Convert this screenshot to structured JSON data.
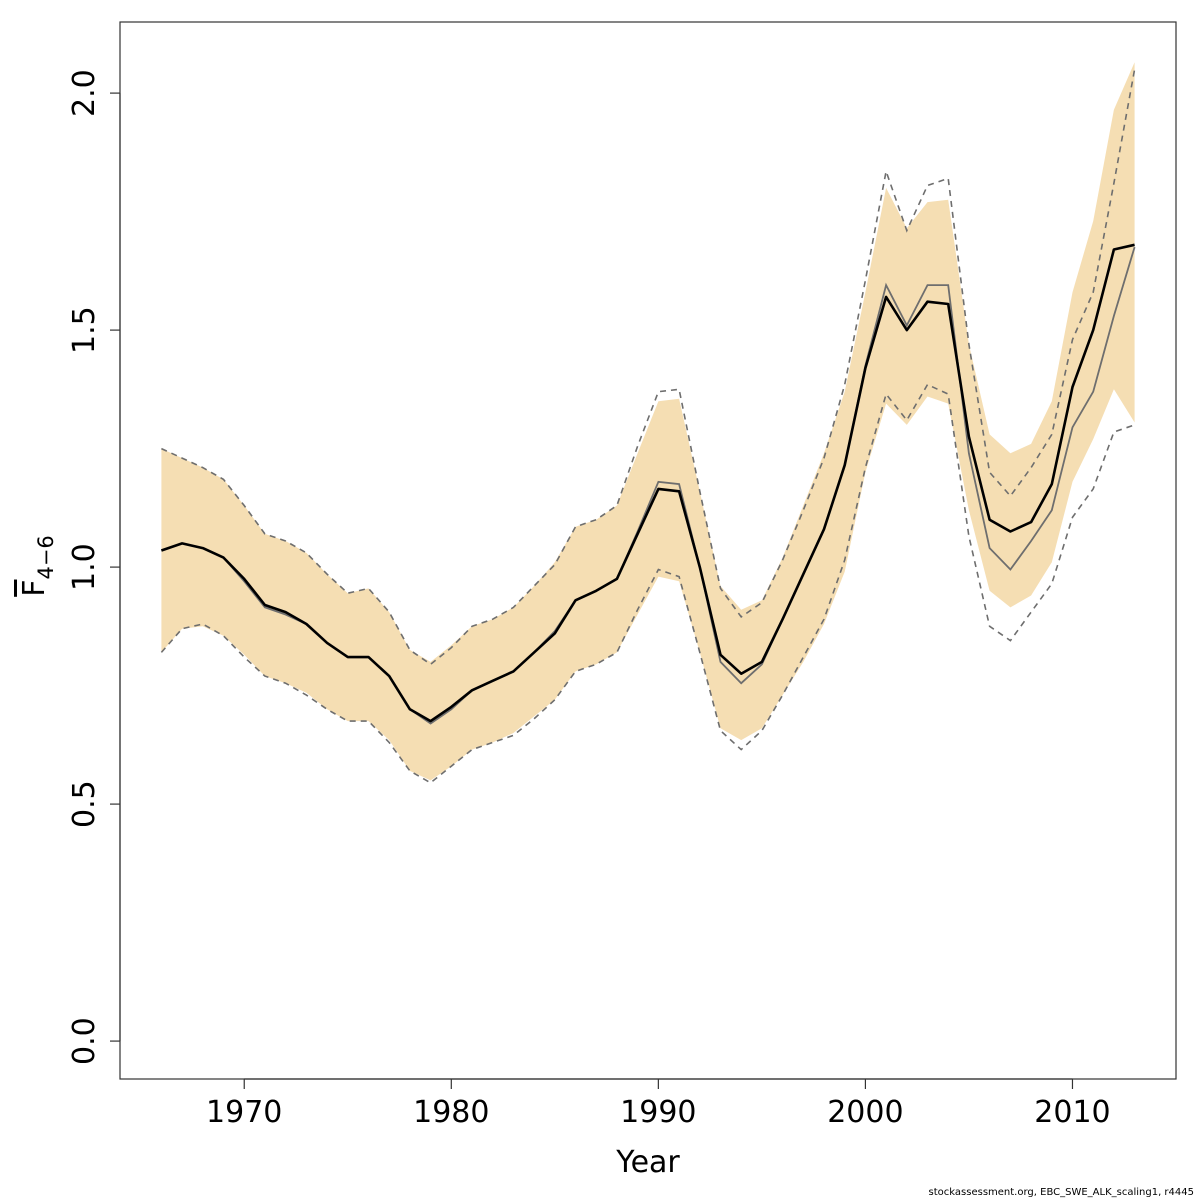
{
  "chart_data": {
    "type": "line",
    "title": "",
    "xlabel": "Year",
    "ylabel": {
      "main": "F",
      "subscript": "4−6"
    },
    "xlim": [
      1964,
      2015
    ],
    "ylim": [
      -0.08,
      2.15
    ],
    "xticks": [
      1970,
      1980,
      1990,
      2000,
      2010
    ],
    "yticks": [
      0.0,
      0.5,
      1.0,
      1.5,
      2.0
    ],
    "ytick_labels": [
      "0.0",
      "0.5",
      "1.0",
      "1.5",
      "2.0"
    ],
    "grid": false,
    "legend": "none",
    "x": [
      1966,
      1967,
      1968,
      1969,
      1970,
      1971,
      1972,
      1973,
      1974,
      1975,
      1976,
      1977,
      1978,
      1979,
      1980,
      1981,
      1982,
      1983,
      1984,
      1985,
      1986,
      1987,
      1988,
      1989,
      1990,
      1991,
      1992,
      1993,
      1994,
      1995,
      1996,
      1997,
      1998,
      1999,
      2000,
      2001,
      2002,
      2003,
      2004,
      2005,
      2006,
      2007,
      2008,
      2009,
      2010,
      2011,
      2012,
      2013
    ],
    "series": [
      {
        "role": "confidence-band",
        "lower": [
          0.82,
          0.87,
          0.875,
          0.855,
          0.815,
          0.77,
          0.755,
          0.735,
          0.7,
          0.675,
          0.675,
          0.635,
          0.57,
          0.55,
          0.58,
          0.615,
          0.63,
          0.65,
          0.685,
          0.72,
          0.78,
          0.795,
          0.82,
          0.9,
          0.98,
          0.97,
          0.82,
          0.66,
          0.635,
          0.66,
          0.73,
          0.8,
          0.88,
          0.99,
          1.2,
          1.345,
          1.3,
          1.36,
          1.345,
          1.12,
          0.95,
          0.915,
          0.94,
          1.01,
          1.18,
          1.27,
          1.375,
          1.305
        ],
        "upper": [
          1.25,
          1.23,
          1.21,
          1.185,
          1.13,
          1.07,
          1.055,
          1.03,
          0.985,
          0.945,
          0.955,
          0.905,
          0.825,
          0.8,
          0.835,
          0.875,
          0.89,
          0.915,
          0.96,
          1.01,
          1.085,
          1.1,
          1.13,
          1.24,
          1.35,
          1.355,
          1.16,
          0.96,
          0.91,
          0.93,
          1.02,
          1.13,
          1.24,
          1.37,
          1.58,
          1.8,
          1.715,
          1.77,
          1.775,
          1.47,
          1.28,
          1.24,
          1.26,
          1.35,
          1.58,
          1.73,
          1.965,
          2.065
        ]
      },
      {
        "role": "previous-bounds",
        "lower": [
          0.82,
          0.87,
          0.88,
          0.855,
          0.81,
          0.77,
          0.755,
          0.73,
          0.7,
          0.675,
          0.675,
          0.63,
          0.57,
          0.545,
          0.58,
          0.615,
          0.63,
          0.645,
          0.68,
          0.72,
          0.78,
          0.795,
          0.82,
          0.91,
          0.995,
          0.98,
          0.82,
          0.655,
          0.615,
          0.655,
          0.73,
          0.81,
          0.89,
          1.015,
          1.21,
          1.365,
          1.31,
          1.385,
          1.365,
          1.065,
          0.875,
          0.845,
          0.905,
          0.965,
          1.105,
          1.165,
          1.285,
          1.3
        ],
        "upper": [
          1.25,
          1.23,
          1.21,
          1.185,
          1.13,
          1.07,
          1.055,
          1.03,
          0.985,
          0.945,
          0.955,
          0.905,
          0.825,
          0.795,
          0.83,
          0.875,
          0.89,
          0.915,
          0.96,
          1.005,
          1.085,
          1.1,
          1.13,
          1.255,
          1.37,
          1.375,
          1.16,
          0.955,
          0.895,
          0.925,
          1.015,
          1.12,
          1.23,
          1.385,
          1.605,
          1.835,
          1.71,
          1.805,
          1.82,
          1.47,
          1.2,
          1.15,
          1.21,
          1.28,
          1.48,
          1.58,
          1.81,
          2.05
        ]
      },
      {
        "role": "previous-estimate",
        "values": [
          1.035,
          1.05,
          1.04,
          1.02,
          0.97,
          0.915,
          0.9,
          0.88,
          0.84,
          0.81,
          0.81,
          0.77,
          0.7,
          0.67,
          0.7,
          0.74,
          0.76,
          0.78,
          0.82,
          0.865,
          0.93,
          0.95,
          0.975,
          1.075,
          1.18,
          1.175,
          1.0,
          0.8,
          0.755,
          0.795,
          0.89,
          0.985,
          1.08,
          1.215,
          1.425,
          1.595,
          1.51,
          1.595,
          1.595,
          1.24,
          1.04,
          0.995,
          1.055,
          1.12,
          1.295,
          1.37,
          1.53,
          1.675
        ]
      },
      {
        "role": "estimate",
        "values": [
          1.035,
          1.05,
          1.04,
          1.02,
          0.975,
          0.92,
          0.905,
          0.88,
          0.84,
          0.81,
          0.81,
          0.77,
          0.7,
          0.675,
          0.705,
          0.74,
          0.76,
          0.78,
          0.82,
          0.86,
          0.93,
          0.95,
          0.975,
          1.07,
          1.165,
          1.16,
          1.0,
          0.815,
          0.775,
          0.8,
          0.89,
          0.985,
          1.08,
          1.215,
          1.42,
          1.57,
          1.5,
          1.56,
          1.555,
          1.275,
          1.1,
          1.075,
          1.095,
          1.175,
          1.38,
          1.5,
          1.67,
          1.68
        ]
      }
    ],
    "colors": {
      "band": "#f5deb3",
      "estimate": "#000000",
      "previous_estimate": "#6e6e6e",
      "previous_bounds": "#6e6e6e",
      "frame": "#333333"
    }
  },
  "footer": {
    "credit": "stockassessment.org, EBC_SWE_ALK_scaling1, r4445"
  }
}
